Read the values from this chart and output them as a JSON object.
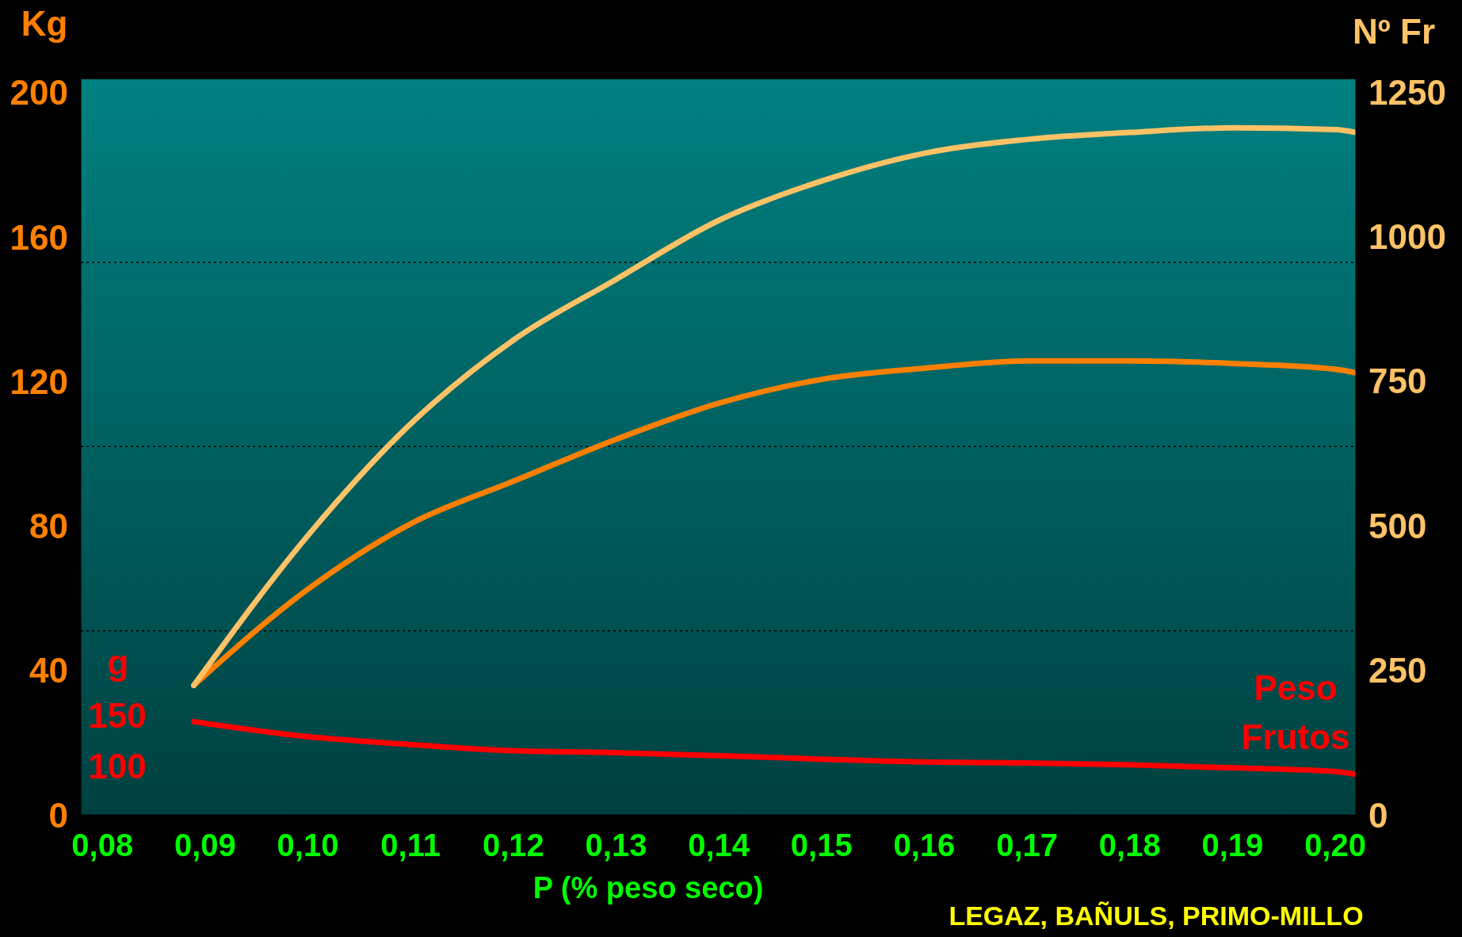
{
  "chart_data": {
    "type": "line",
    "xlabel": "P (% peso seco)",
    "ylabel": "Kg",
    "y2label": "Nº Fr",
    "y3label": "g",
    "annotations": [
      "LEGAZ, BAÑULS, PRIMO-MILLO"
    ],
    "x": [
      0.0889,
      0.1,
      0.11,
      0.12,
      0.13,
      0.14,
      0.15,
      0.16,
      0.17,
      0.18,
      0.19,
      0.2,
      0.202
    ],
    "series": [
      {
        "color": "#ff8000",
        "values": [
          35.9,
          62.5,
          80.6,
          92.4,
          104,
          114,
          120.6,
          123.7,
          125.7,
          125.7,
          125,
          123.4,
          122.4
        ]
      },
      {
        "color": "#ffc266",
        "axis": "y2",
        "values": [
          224,
          483,
          676,
          821,
          926,
          1028,
          1096,
          1144,
          1168,
          1180,
          1188,
          1185,
          1180
        ]
      },
      {
        "name": "Peso Frutos",
        "color": "#ff0000",
        "axis": "y3",
        "values": [
          143.5,
          128.7,
          121,
          114.8,
          113,
          110,
          106.5,
          103.7,
          102.8,
          101,
          98,
          94.4,
          91.7
        ]
      }
    ],
    "xlim": [
      0.0779,
      0.202
    ],
    "xticks": [
      {
        "value": 0.08,
        "label": "0,08"
      },
      {
        "value": 0.09,
        "label": "0,09"
      },
      {
        "value": 0.1,
        "label": "0,10"
      },
      {
        "value": 0.11,
        "label": "0,11"
      },
      {
        "value": 0.12,
        "label": "0,12"
      },
      {
        "value": 0.13,
        "label": "0,13"
      },
      {
        "value": 0.14,
        "label": "0,14"
      },
      {
        "value": 0.15,
        "label": "0,15"
      },
      {
        "value": 0.16,
        "label": "0,16"
      },
      {
        "value": 0.17,
        "label": "0,17"
      },
      {
        "value": 0.18,
        "label": "0,18"
      },
      {
        "value": 0.19,
        "label": "0,19"
      },
      {
        "value": 0.2,
        "label": "0,20"
      }
    ],
    "ylim": [
      0,
      203.7
    ],
    "yticks": [
      0,
      40,
      80,
      120,
      160,
      200
    ],
    "y2lim": [
      0,
      1272
    ],
    "y2ticks": [
      0,
      250,
      500,
      750,
      1000,
      1250
    ],
    "y3lim": [
      51.6,
      776.6
    ],
    "y3ticks": [
      100,
      150
    ],
    "ref_lines": [
      {
        "axis": "y",
        "value": 51,
        "color": "#000000",
        "line_style": "dotted"
      },
      {
        "axis": "y",
        "value": 102,
        "color": "#000000",
        "line_style": "dotted"
      },
      {
        "axis": "y",
        "value": 153,
        "color": "#000000",
        "line_style": "dotted"
      }
    ],
    "marker": "none",
    "line_style": "solid",
    "legend": false
  }
}
